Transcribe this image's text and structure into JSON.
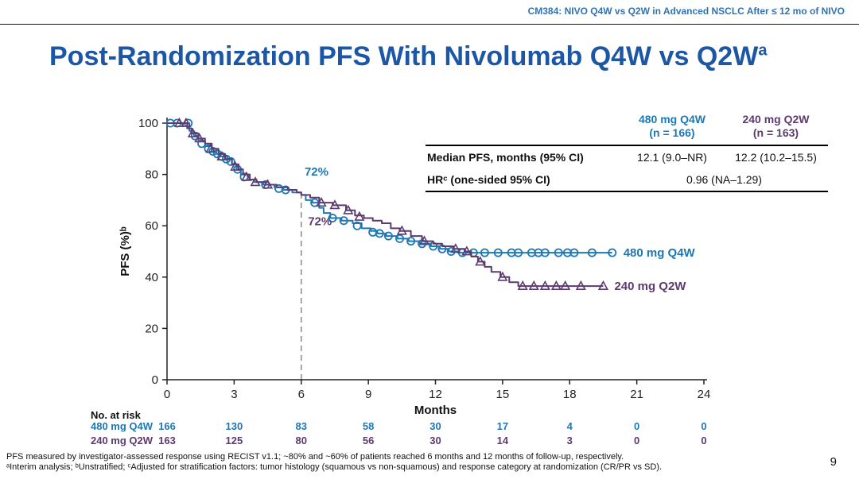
{
  "slide": {
    "header": "CM384: NIVO Q4W vs Q2W in Advanced NSCLC After ≤ 12 mo of NIVO",
    "title": "Post-Randomization PFS With Nivolumab Q4W vs Q2W",
    "title_superscript": "a",
    "page_number": "9",
    "footnotes": [
      "PFS measured by investigator-assessed response using RECIST v1.1; ~80% and ~60% of patients reached 6 months and 12 months of follow-up, respectively.",
      "ᵃInterim analysis; ᵇUnstratified; ᶜAdjusted for stratification factors: tumor histology (squamous vs non-squamous) and response category at randomization (CR/PR vs SD)."
    ]
  },
  "colors": {
    "header_blue": "#2E74B5",
    "title_blue": "#1C57A5",
    "q4w_blue": "#1F77B4",
    "q2w_purple": "#5C3B6E"
  },
  "stats_table": {
    "col_headers": [
      {
        "line1": "480 mg Q4W",
        "line2": "(n = 166)"
      },
      {
        "line1": "240 mg Q2W",
        "line2": "(n = 163)"
      }
    ],
    "rows": [
      {
        "label": "Median PFS, months (95% CI)",
        "values": [
          "12.1 (9.0–NR)",
          "12.2 (10.2–15.5)"
        ]
      },
      {
        "label": "HRᶜ (one-sided 95% CI)",
        "span_value": "0.96 (NA–1.29)"
      }
    ]
  },
  "chart_data": {
    "type": "line",
    "subtype": "kaplan-meier-step",
    "title": "Post-Randomization PFS With Nivolumab Q4W vs Q2W",
    "xlabel": "Months",
    "ylabel": "PFS (%)ᵇ",
    "xlim": [
      0,
      24
    ],
    "ylim": [
      0,
      100
    ],
    "xticks": [
      0,
      3,
      6,
      9,
      12,
      15,
      18,
      21,
      24
    ],
    "yticks": [
      0,
      20,
      40,
      60,
      80,
      100
    ],
    "grid": false,
    "legend_position": "curve-end-labels",
    "series": [
      {
        "id": "480-q4w",
        "name": "480 mg Q4W",
        "n": 166,
        "color": "#1F77B4",
        "marker": "circle",
        "steps": [
          [
            0,
            100
          ],
          [
            0.8,
            100
          ],
          [
            1.0,
            97
          ],
          [
            1.2,
            95
          ],
          [
            1.4,
            93
          ],
          [
            1.7,
            91
          ],
          [
            2.0,
            89
          ],
          [
            2.2,
            88
          ],
          [
            2.4,
            87
          ],
          [
            2.7,
            86
          ],
          [
            2.9,
            84
          ],
          [
            3.1,
            82
          ],
          [
            3.3,
            80
          ],
          [
            3.6,
            78
          ],
          [
            3.9,
            77
          ],
          [
            4.3,
            76
          ],
          [
            4.8,
            75
          ],
          [
            5.2,
            74
          ],
          [
            5.6,
            73
          ],
          [
            6.0,
            72
          ],
          [
            6.2,
            70
          ],
          [
            6.5,
            69
          ],
          [
            6.8,
            67
          ],
          [
            7.0,
            65
          ],
          [
            7.3,
            63
          ],
          [
            7.8,
            62
          ],
          [
            8.3,
            61
          ],
          [
            8.7,
            59
          ],
          [
            9.1,
            58
          ],
          [
            9.4,
            57
          ],
          [
            9.8,
            56
          ],
          [
            10.3,
            55
          ],
          [
            10.8,
            54
          ],
          [
            11.3,
            53
          ],
          [
            11.8,
            52
          ],
          [
            12.2,
            51
          ],
          [
            12.6,
            50
          ],
          [
            13.0,
            49.5
          ],
          [
            19.9,
            49.5
          ]
        ],
        "censors": [
          [
            0.15,
            100
          ],
          [
            0.45,
            100
          ],
          [
            0.95,
            100
          ],
          [
            1.25,
            95
          ],
          [
            1.55,
            92
          ],
          [
            1.85,
            90
          ],
          [
            2.05,
            89
          ],
          [
            2.25,
            88
          ],
          [
            2.45,
            87
          ],
          [
            2.65,
            86
          ],
          [
            2.85,
            85
          ],
          [
            3.15,
            82
          ],
          [
            3.45,
            79
          ],
          [
            4.4,
            76
          ],
          [
            5.0,
            74.5
          ],
          [
            5.3,
            74
          ],
          [
            6.6,
            69
          ],
          [
            7.4,
            63
          ],
          [
            7.9,
            62
          ],
          [
            8.5,
            60
          ],
          [
            9.2,
            57.5
          ],
          [
            9.5,
            57
          ],
          [
            9.9,
            56
          ],
          [
            10.4,
            55
          ],
          [
            10.9,
            54
          ],
          [
            11.4,
            53
          ],
          [
            11.9,
            52
          ],
          [
            12.3,
            51
          ],
          [
            12.7,
            50
          ],
          [
            13.2,
            49.5
          ],
          [
            13.7,
            49.5
          ],
          [
            14.2,
            49.5
          ],
          [
            14.8,
            49.5
          ],
          [
            15.4,
            49.5
          ],
          [
            15.7,
            49.5
          ],
          [
            16.3,
            49.5
          ],
          [
            16.6,
            49.5
          ],
          [
            16.9,
            49.5
          ],
          [
            17.5,
            49.5
          ],
          [
            17.9,
            49.5
          ],
          [
            18.2,
            49.5
          ],
          [
            19.0,
            49.5
          ],
          [
            19.9,
            49.5
          ]
        ]
      },
      {
        "id": "240-q2w",
        "name": "240 mg Q2W",
        "n": 163,
        "color": "#5C3B6E",
        "marker": "triangle",
        "steps": [
          [
            0,
            100
          ],
          [
            0.7,
            100
          ],
          [
            0.9,
            98
          ],
          [
            1.1,
            96
          ],
          [
            1.4,
            94
          ],
          [
            1.7,
            92
          ],
          [
            2.0,
            90
          ],
          [
            2.3,
            88
          ],
          [
            2.6,
            86
          ],
          [
            2.9,
            84
          ],
          [
            3.2,
            82
          ],
          [
            3.4,
            80
          ],
          [
            3.7,
            78
          ],
          [
            4.0,
            77
          ],
          [
            4.4,
            76
          ],
          [
            4.9,
            75
          ],
          [
            5.4,
            74
          ],
          [
            5.8,
            73
          ],
          [
            6.0,
            72
          ],
          [
            6.4,
            71
          ],
          [
            6.8,
            69
          ],
          [
            7.4,
            68
          ],
          [
            8.0,
            66
          ],
          [
            8.4,
            64
          ],
          [
            8.8,
            63
          ],
          [
            9.2,
            62
          ],
          [
            9.6,
            61
          ],
          [
            10.0,
            59
          ],
          [
            10.4,
            58
          ],
          [
            10.9,
            56
          ],
          [
            11.4,
            54
          ],
          [
            11.9,
            53
          ],
          [
            12.3,
            52
          ],
          [
            12.8,
            51
          ],
          [
            13.3,
            50
          ],
          [
            13.6,
            48
          ],
          [
            13.9,
            46
          ],
          [
            14.2,
            44
          ],
          [
            14.5,
            42
          ],
          [
            14.9,
            40
          ],
          [
            15.3,
            38
          ],
          [
            15.7,
            36.5
          ],
          [
            19.5,
            36.5
          ]
        ],
        "censors": [
          [
            0.55,
            100
          ],
          [
            0.85,
            100
          ],
          [
            1.15,
            96
          ],
          [
            1.45,
            94
          ],
          [
            1.95,
            90
          ],
          [
            2.45,
            87
          ],
          [
            3.05,
            83
          ],
          [
            3.55,
            79
          ],
          [
            3.95,
            77
          ],
          [
            4.5,
            76
          ],
          [
            6.9,
            69
          ],
          [
            7.5,
            68
          ],
          [
            8.1,
            66
          ],
          [
            8.6,
            63.5
          ],
          [
            10.5,
            58
          ],
          [
            11.5,
            54
          ],
          [
            12.9,
            51
          ],
          [
            13.4,
            50
          ],
          [
            14.0,
            46
          ],
          [
            15.0,
            40
          ],
          [
            15.9,
            36.5
          ],
          [
            16.4,
            36.5
          ],
          [
            16.9,
            36.5
          ],
          [
            17.4,
            36.5
          ],
          [
            17.8,
            36.5
          ],
          [
            18.5,
            36.5
          ],
          [
            19.5,
            36.5
          ]
        ]
      }
    ],
    "annotations": [
      {
        "text": "72%",
        "x": 6.15,
        "y": 79.5,
        "color": "#1F77B4"
      },
      {
        "text": "72%",
        "x": 6.3,
        "y": 60.2,
        "color": "#5C3B6E"
      }
    ],
    "refline": {
      "x": 6,
      "y_top": 72
    }
  },
  "at_risk": {
    "label": "No. at risk",
    "rows": [
      {
        "name": "480 mg Q4W",
        "color": "#1F77B4",
        "values": [
          166,
          130,
          83,
          58,
          30,
          17,
          4,
          0,
          0
        ]
      },
      {
        "name": "240 mg Q2W",
        "color": "#5C3B6E",
        "values": [
          163,
          125,
          80,
          56,
          30,
          14,
          3,
          0,
          0
        ]
      }
    ]
  }
}
